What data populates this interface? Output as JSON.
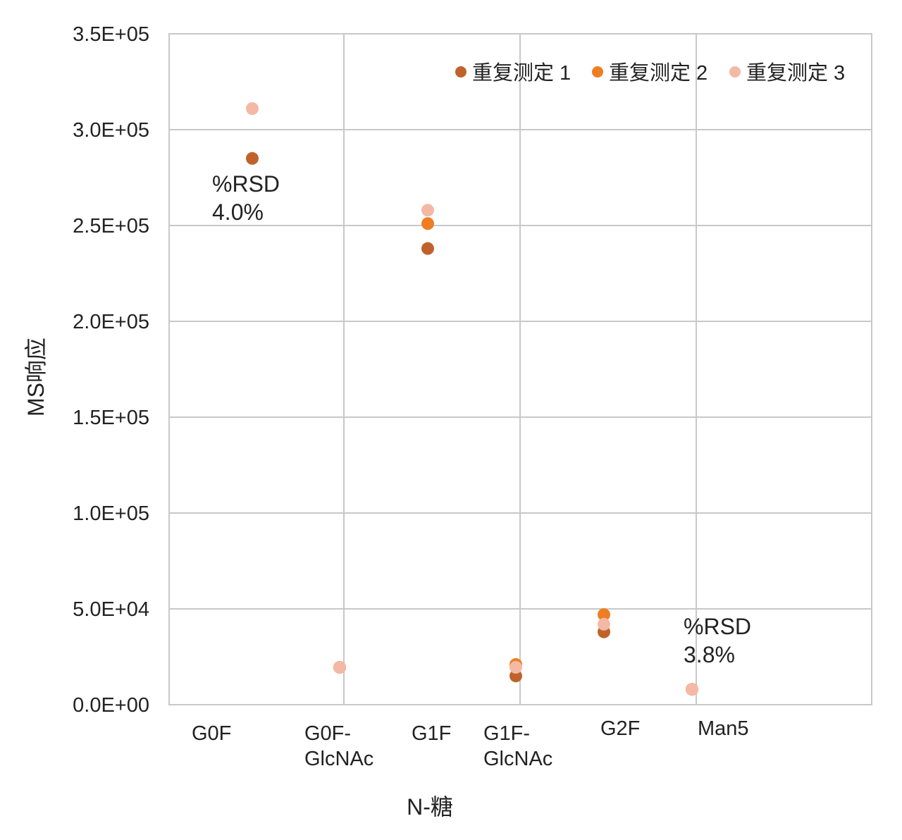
{
  "chart_data": {
    "type": "scatter",
    "title": "",
    "xlabel": "N-糖",
    "ylabel": "MS响应",
    "ylim": [
      0,
      350000
    ],
    "y_ticks": [
      "0.0E+00",
      "5.0E+04",
      "1.0E+05",
      "1.5E+05",
      "2.0E+05",
      "2.5E+05",
      "3.0E+05",
      "3.5E+05"
    ],
    "categories": [
      {
        "lines": [
          "G0F"
        ]
      },
      {
        "lines": [
          "G0F-",
          "GlcNAc"
        ]
      },
      {
        "lines": [
          "G1F"
        ]
      },
      {
        "lines": [
          "G1F-",
          "GlcNAc"
        ]
      },
      {
        "lines": [
          "G2F"
        ]
      },
      {
        "lines": [
          "Man5"
        ]
      }
    ],
    "series": [
      {
        "name": "重复测定 1",
        "color": "#c0622b",
        "values": [
          285000,
          19500,
          238000,
          15000,
          38000,
          8000
        ]
      },
      {
        "name": "重复测定 2",
        "color": "#ef7d22",
        "values": [
          null,
          19500,
          251000,
          21000,
          47000,
          8000
        ]
      },
      {
        "name": "重复测定 3",
        "color": "#f4b9a4",
        "values": [
          311000,
          19500,
          258000,
          19500,
          42000,
          8000
        ]
      }
    ],
    "annotations": [
      {
        "category_index": 0,
        "lines": [
          "%RSD",
          "4.0%"
        ]
      },
      {
        "category_index": 5,
        "lines": [
          "%RSD",
          "3.8%"
        ]
      }
    ],
    "grid": true,
    "legend_position": "top-right"
  }
}
